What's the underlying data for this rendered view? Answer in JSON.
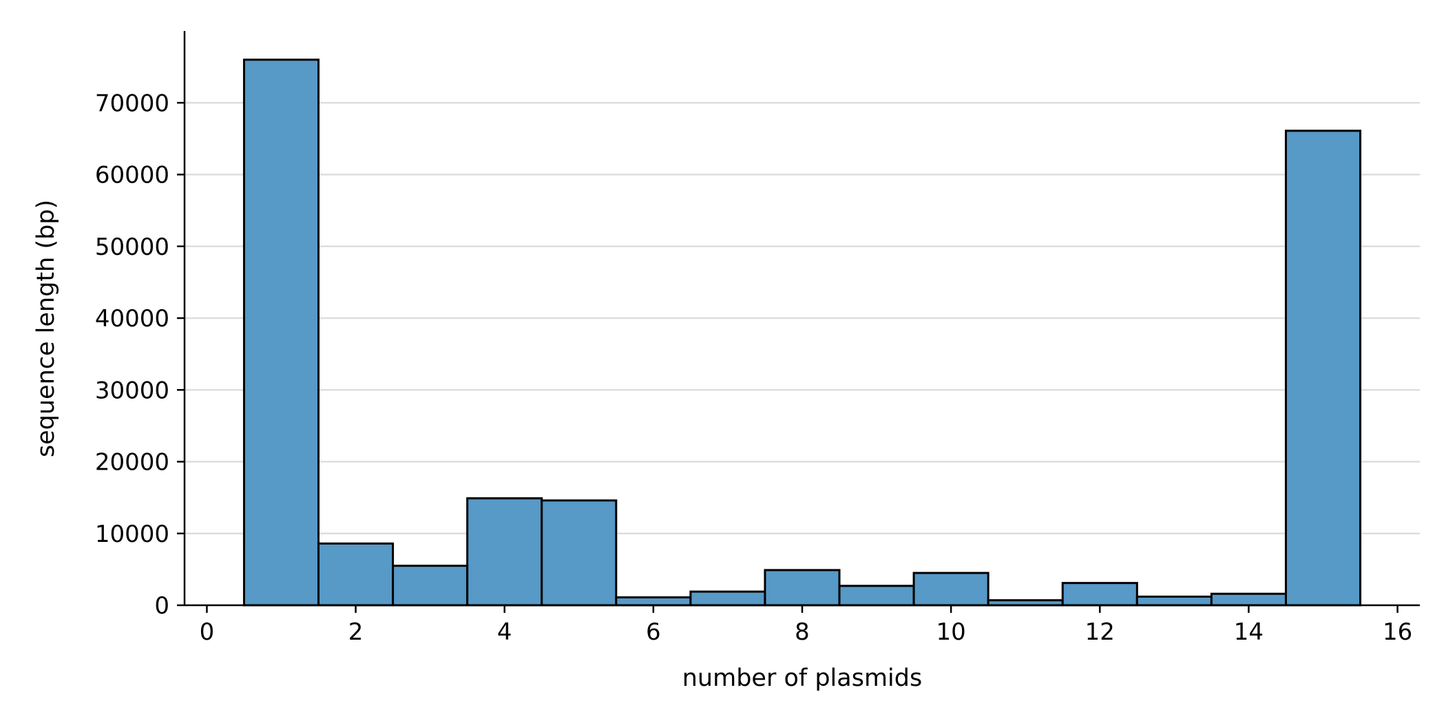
{
  "chart_data": {
    "type": "bar",
    "title": "",
    "xlabel": "number of plasmids",
    "ylabel": "sequence length (bp)",
    "xlim": [
      -0.3,
      16.3
    ],
    "ylim": [
      0,
      80000
    ],
    "x_ticks": [
      0,
      2,
      4,
      6,
      8,
      10,
      12,
      14,
      16
    ],
    "y_ticks": [
      0,
      10000,
      20000,
      30000,
      40000,
      50000,
      60000,
      70000
    ],
    "grid": "horizontal",
    "bar_width": 1,
    "categories": [
      1,
      2,
      3,
      4,
      5,
      6,
      7,
      8,
      9,
      10,
      11,
      12,
      13,
      14,
      15
    ],
    "values": [
      76000,
      8600,
      5500,
      14900,
      14600,
      1100,
      1900,
      4900,
      2700,
      4500,
      700,
      3100,
      1200,
      1600,
      66100
    ],
    "colors": {
      "bar_fill": "#5799c7",
      "bar_edge": "#000000",
      "grid": "#dddddd",
      "axis": "#000000"
    }
  }
}
